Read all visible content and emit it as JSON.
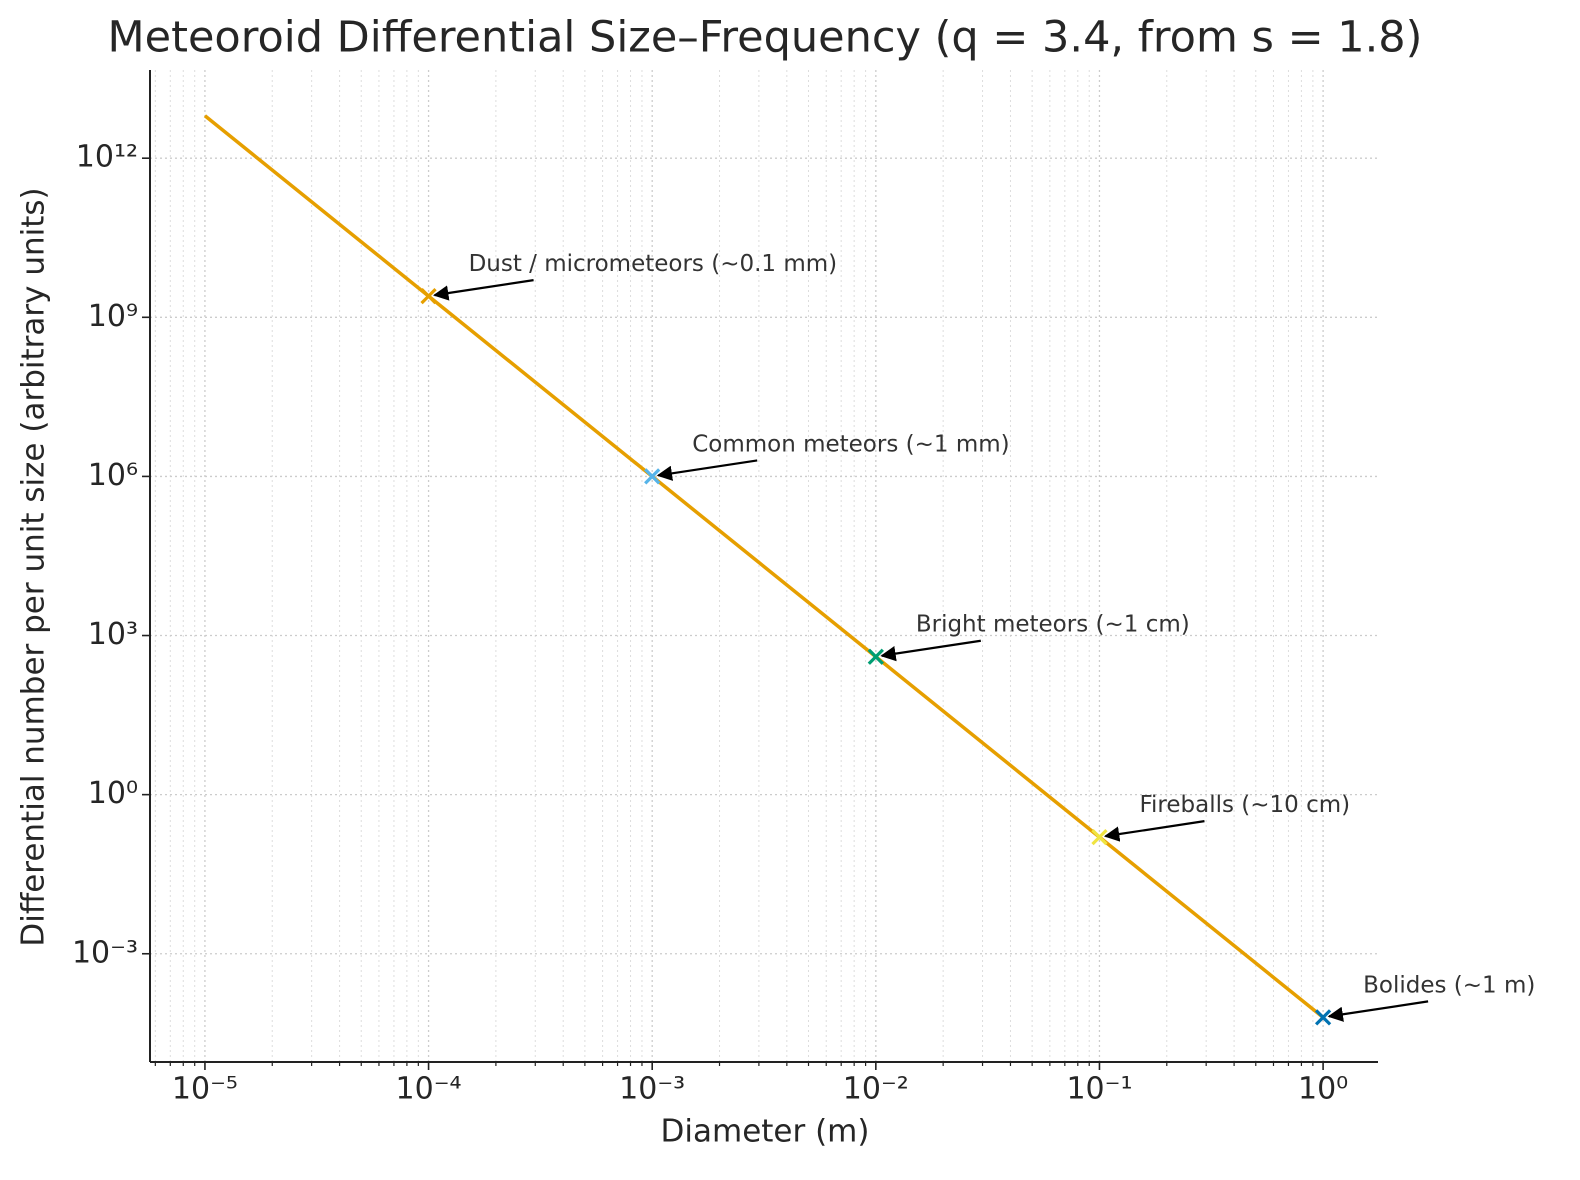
{
  "chart_data": {
    "type": "line",
    "title": "Meteoroid Differential Size–Frequency (q = 3.4, from s = 1.8)",
    "xlabel": "Diameter (m)",
    "ylabel": "Differential number per unit size (arbitrary units)",
    "x": [
      1e-05,
      0.0001,
      0.001,
      0.01,
      0.1,
      1
    ],
    "series": [
      {
        "color": "#e69f00",
        "values": [
          6310000000000,
          2510000000,
          1000000,
          398,
          0.158,
          6.31e-05
        ]
      }
    ],
    "markers": [
      {
        "label": "Dust / micrometeors (~0.1 mm)",
        "x": 0.0001,
        "y": 2510000000,
        "color": "#e69f00"
      },
      {
        "label": "Common meteors (~1 mm)",
        "x": 0.001,
        "y": 1000000,
        "color": "#56b4e9"
      },
      {
        "label": "Bright meteors (~1 cm)",
        "x": 0.01,
        "y": 398,
        "color": "#009e73"
      },
      {
        "label": "Fireballs (~10 cm)",
        "x": 0.1,
        "y": 0.158,
        "color": "#f0e442"
      },
      {
        "label": "Bolides (~1 m)",
        "x": 1,
        "y": 6.31e-05,
        "color": "#0072b2"
      }
    ],
    "xscale": "log",
    "yscale": "log",
    "xlim": [
      5.68e-06,
      1.76
    ],
    "ylim": [
      9.1e-06,
      46000000000000
    ],
    "xticks": [
      {
        "value": 1e-05,
        "label": "10⁻⁵"
      },
      {
        "value": 0.0001,
        "label": "10⁻⁴"
      },
      {
        "value": 0.001,
        "label": "10⁻³"
      },
      {
        "value": 0.01,
        "label": "10⁻²"
      },
      {
        "value": 0.1,
        "label": "10⁻¹"
      },
      {
        "value": 1,
        "label": "10⁰"
      }
    ],
    "yticks": [
      {
        "value": 0.001,
        "label": "10⁻³"
      },
      {
        "value": 1,
        "label": "10⁰"
      },
      {
        "value": 1000,
        "label": "10³"
      },
      {
        "value": 1000000,
        "label": "10⁶"
      },
      {
        "value": 1000000000,
        "label": "10⁹"
      },
      {
        "value": 1000000000000,
        "label": "10¹²"
      }
    ],
    "grid": true,
    "x_minor_grid": true
  }
}
